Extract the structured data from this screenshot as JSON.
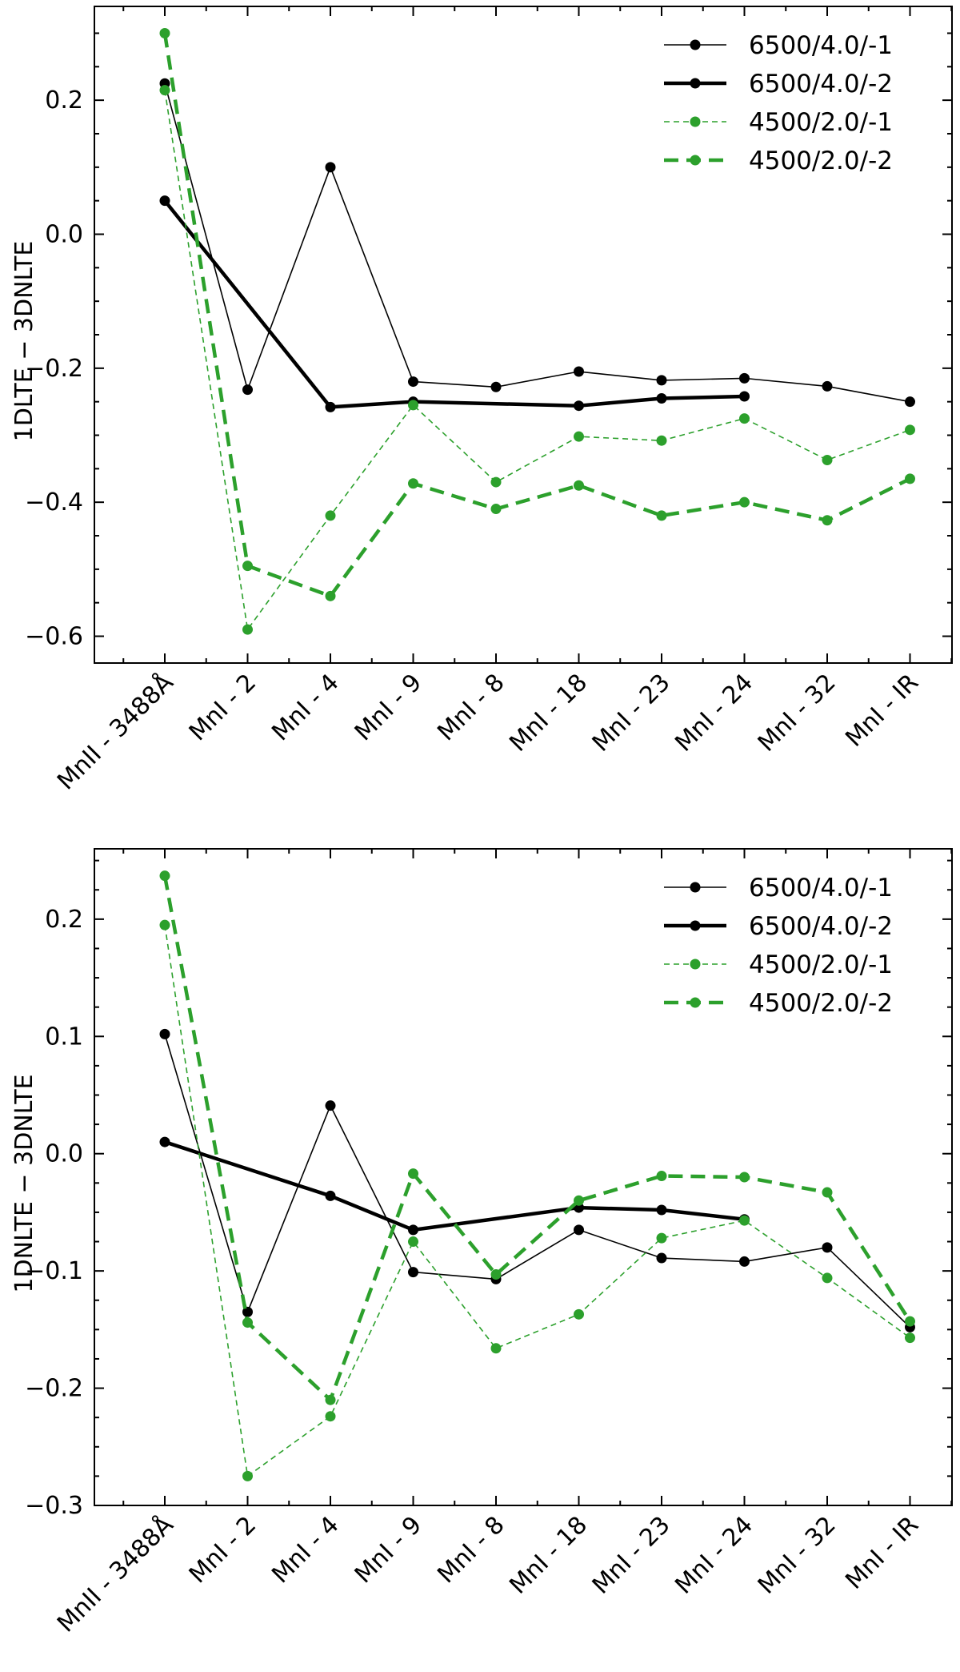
{
  "chart_data": [
    {
      "type": "line",
      "title": "",
      "xlabel": "",
      "ylabel": "1DLTE − 3DNLTE",
      "ylim": [
        -0.64,
        0.34
      ],
      "yticks": [
        0.2,
        0.0,
        -0.2,
        -0.4,
        -0.6
      ],
      "ytick_labels": [
        "0.2",
        "0.0",
        "−0.2",
        "−0.4",
        "−0.6"
      ],
      "categories": [
        "MnII - 3488Å",
        "MnI - 2",
        "MnI - 4",
        "MnI - 9",
        "MnI - 8",
        "MnI - 18",
        "MnI - 23",
        "MnI - 24",
        "MnI - 32",
        "MnI - IR"
      ],
      "legend_position": "top-right",
      "series": [
        {
          "name": "6500/4.0/-1",
          "color": "#000000",
          "style": "solid",
          "weight": "thin",
          "values": [
            0.225,
            -0.232,
            0.1,
            -0.22,
            -0.228,
            -0.205,
            -0.218,
            -0.215,
            -0.227,
            -0.25
          ]
        },
        {
          "name": "6500/4.0/-2",
          "color": "#000000",
          "style": "solid",
          "weight": "thick",
          "values": [
            0.05,
            null,
            -0.258,
            -0.25,
            null,
            -0.256,
            -0.245,
            -0.242,
            null,
            null
          ]
        },
        {
          "name": "4500/2.0/-1",
          "color": "#2ca02c",
          "style": "dashed",
          "weight": "thin",
          "values": [
            0.215,
            -0.59,
            -0.42,
            -0.255,
            -0.37,
            -0.302,
            -0.308,
            -0.275,
            -0.337,
            -0.292
          ]
        },
        {
          "name": "4500/2.0/-2",
          "color": "#2ca02c",
          "style": "dashed",
          "weight": "thick",
          "values": [
            0.3,
            -0.495,
            -0.54,
            -0.372,
            -0.41,
            -0.375,
            -0.42,
            -0.4,
            -0.427,
            -0.365
          ]
        }
      ]
    },
    {
      "type": "line",
      "title": "",
      "xlabel": "",
      "ylabel": "1DNLTE − 3DNLTE",
      "ylim": [
        -0.3,
        0.26
      ],
      "yticks": [
        0.2,
        0.1,
        0.0,
        -0.1,
        -0.2,
        -0.3
      ],
      "ytick_labels": [
        "0.2",
        "0.1",
        "0.0",
        "−0.1",
        "−0.2",
        "−0.3"
      ],
      "categories": [
        "MnII - 3488Å",
        "MnI - 2",
        "MnI - 4",
        "MnI - 9",
        "MnI - 8",
        "MnI - 18",
        "MnI - 23",
        "MnI - 24",
        "MnI - 32",
        "MnI - IR"
      ],
      "legend_position": "top-right",
      "series": [
        {
          "name": "6500/4.0/-1",
          "color": "#000000",
          "style": "solid",
          "weight": "thin",
          "values": [
            0.102,
            -0.135,
            0.041,
            -0.101,
            -0.107,
            -0.065,
            -0.089,
            -0.092,
            -0.08,
            -0.148
          ]
        },
        {
          "name": "6500/4.0/-2",
          "color": "#000000",
          "style": "solid",
          "weight": "thick",
          "values": [
            0.01,
            null,
            -0.036,
            -0.065,
            null,
            -0.046,
            -0.048,
            -0.056,
            null,
            null
          ]
        },
        {
          "name": "4500/2.0/-1",
          "color": "#2ca02c",
          "style": "dashed",
          "weight": "thin",
          "values": [
            0.195,
            -0.275,
            -0.224,
            -0.075,
            -0.166,
            -0.137,
            -0.072,
            -0.057,
            -0.106,
            -0.157
          ]
        },
        {
          "name": "4500/2.0/-2",
          "color": "#2ca02c",
          "style": "dashed",
          "weight": "thick",
          "values": [
            0.237,
            -0.144,
            -0.21,
            -0.017,
            -0.103,
            -0.04,
            -0.019,
            -0.02,
            -0.033,
            -0.143
          ]
        }
      ]
    }
  ]
}
